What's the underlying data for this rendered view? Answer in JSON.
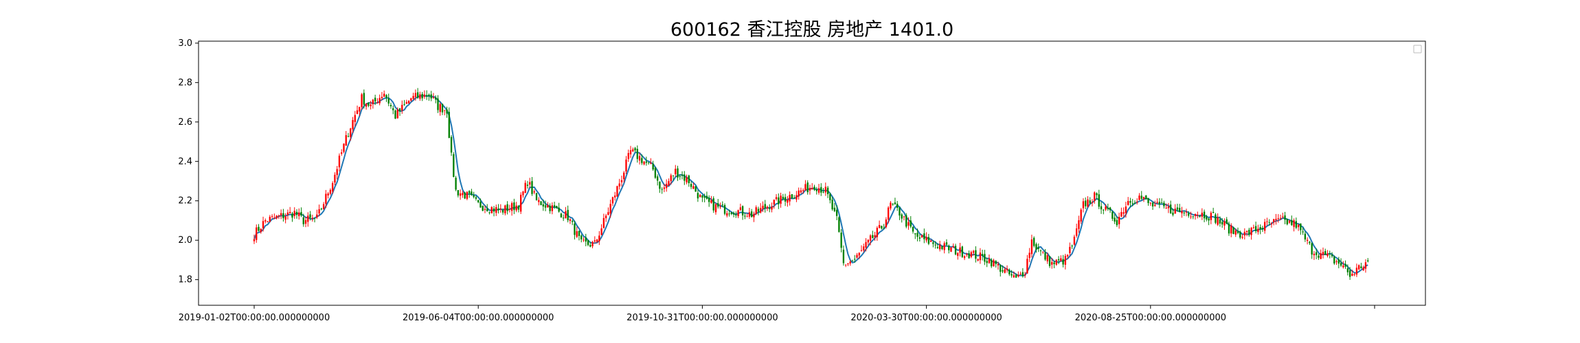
{
  "chart_data": {
    "type": "candlestick",
    "title": "600162 香江控股 房地产 1401.0",
    "xlabel": "",
    "ylabel": "",
    "ylim": [
      1.67,
      3.01
    ],
    "y_ticks": [
      1.8,
      2.0,
      2.2,
      2.4,
      2.6,
      2.8,
      3.0
    ],
    "y_tick_labels": [
      "1.8",
      "2.0",
      "2.2",
      "2.4",
      "2.6",
      "2.8",
      "3.0"
    ],
    "x_tick_labels": [
      "2019-01-02T00:00:00.000000000",
      "2019-06-04T00:00:00.000000000",
      "2019-10-31T00:00:00.000000000",
      "2020-03-30T00:00:00.000000000",
      "2020-08-25T00:00:00.000000000",
      ""
    ],
    "x_tick_positions": [
      0,
      100,
      200,
      300,
      400,
      500
    ],
    "grid": false,
    "legend": "top-right (empty)",
    "up_color": "#ff0000",
    "down_color": "#008000",
    "ma_color": "#1f77b4",
    "price_anchors": [
      [
        0,
        2.03
      ],
      [
        5,
        2.1
      ],
      [
        18,
        2.14
      ],
      [
        22,
        2.1
      ],
      [
        28,
        2.11
      ],
      [
        35,
        2.3
      ],
      [
        42,
        2.55
      ],
      [
        48,
        2.72
      ],
      [
        52,
        2.68
      ],
      [
        58,
        2.75
      ],
      [
        63,
        2.63
      ],
      [
        70,
        2.72
      ],
      [
        78,
        2.74
      ],
      [
        82,
        2.68
      ],
      [
        86,
        2.66
      ],
      [
        88,
        2.42
      ],
      [
        90,
        2.25
      ],
      [
        96,
        2.22
      ],
      [
        100,
        2.18
      ],
      [
        110,
        2.15
      ],
      [
        118,
        2.18
      ],
      [
        122,
        2.3
      ],
      [
        126,
        2.2
      ],
      [
        132,
        2.17
      ],
      [
        140,
        2.12
      ],
      [
        146,
        1.98
      ],
      [
        152,
        1.98
      ],
      [
        158,
        2.15
      ],
      [
        164,
        2.32
      ],
      [
        168,
        2.45
      ],
      [
        172,
        2.42
      ],
      [
        178,
        2.36
      ],
      [
        182,
        2.25
      ],
      [
        188,
        2.35
      ],
      [
        194,
        2.3
      ],
      [
        200,
        2.2
      ],
      [
        208,
        2.16
      ],
      [
        215,
        2.15
      ],
      [
        222,
        2.13
      ],
      [
        230,
        2.18
      ],
      [
        238,
        2.22
      ],
      [
        244,
        2.25
      ],
      [
        250,
        2.28
      ],
      [
        255,
        2.25
      ],
      [
        260,
        2.1
      ],
      [
        263,
        1.88
      ],
      [
        268,
        1.9
      ],
      [
        275,
        2.0
      ],
      [
        281,
        2.08
      ],
      [
        284,
        2.18
      ],
      [
        288,
        2.14
      ],
      [
        295,
        2.02
      ],
      [
        304,
        1.98
      ],
      [
        312,
        1.95
      ],
      [
        320,
        1.93
      ],
      [
        328,
        1.9
      ],
      [
        334,
        1.85
      ],
      [
        340,
        1.8
      ],
      [
        344,
        1.85
      ],
      [
        347,
        2.0
      ],
      [
        350,
        1.95
      ],
      [
        356,
        1.88
      ],
      [
        362,
        1.9
      ],
      [
        366,
        2.0
      ],
      [
        370,
        2.18
      ],
      [
        375,
        2.22
      ],
      [
        380,
        2.15
      ],
      [
        385,
        2.1
      ],
      [
        390,
        2.2
      ],
      [
        395,
        2.22
      ],
      [
        400,
        2.18
      ],
      [
        410,
        2.15
      ],
      [
        420,
        2.14
      ],
      [
        428,
        2.12
      ],
      [
        436,
        2.05
      ],
      [
        442,
        2.03
      ],
      [
        450,
        2.07
      ],
      [
        458,
        2.1
      ],
      [
        465,
        2.08
      ],
      [
        472,
        1.95
      ],
      [
        480,
        1.91
      ],
      [
        486,
        1.87
      ],
      [
        489,
        1.82
      ],
      [
        493,
        1.86
      ],
      [
        497,
        1.89
      ]
    ]
  }
}
